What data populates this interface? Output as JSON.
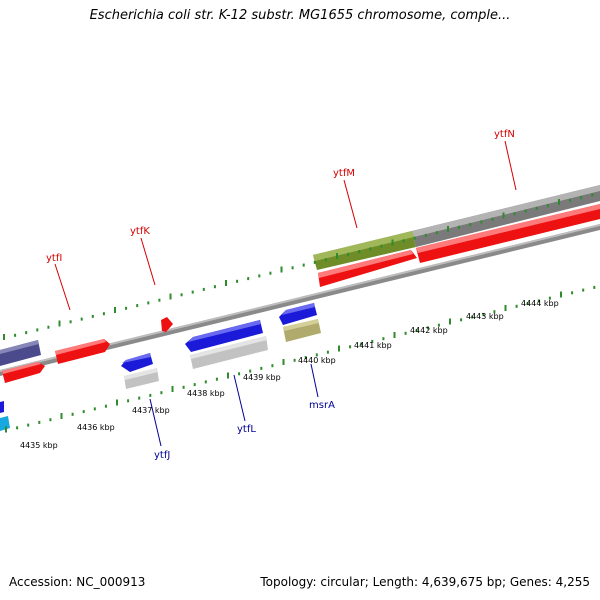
{
  "title": "Escherichia coli str. K-12 substr. MG1655 chromosome, comple...",
  "footer": {
    "accession": "Accession: NC_000913",
    "summary": "Topology: circular; Length: 4,639,675 bp; Genes: 4,255"
  },
  "colors": {
    "backbone": "#888888",
    "tick": "#2e8b2e",
    "top_label": "#d40000",
    "bottom_label": "#000099",
    "gene_red": "#ee1111",
    "gene_blue": "#1a1ad8",
    "gene_navy": "#4a4a8c",
    "gene_gray": "#7a7a7a",
    "gene_lightgray": "#c2c2c2",
    "gene_olive": "#6e8c28",
    "gene_khaki": "#b0aa6c",
    "gene_cyan": "#18a8e0"
  },
  "scale_labels": [
    "4435 kbp",
    "4436 kbp",
    "4437 kbp",
    "4438 kbp",
    "4439 kbp",
    "4440 kbp",
    "4441 kbp",
    "4442 kbp",
    "4443 kbp",
    "4444 kbp"
  ],
  "top_gene_labels": [
    "ytfI",
    "ytfK",
    "ytfM",
    "ytfN"
  ],
  "bottom_gene_labels": [
    "ytfJ",
    "ytfL",
    "msrA"
  ]
}
